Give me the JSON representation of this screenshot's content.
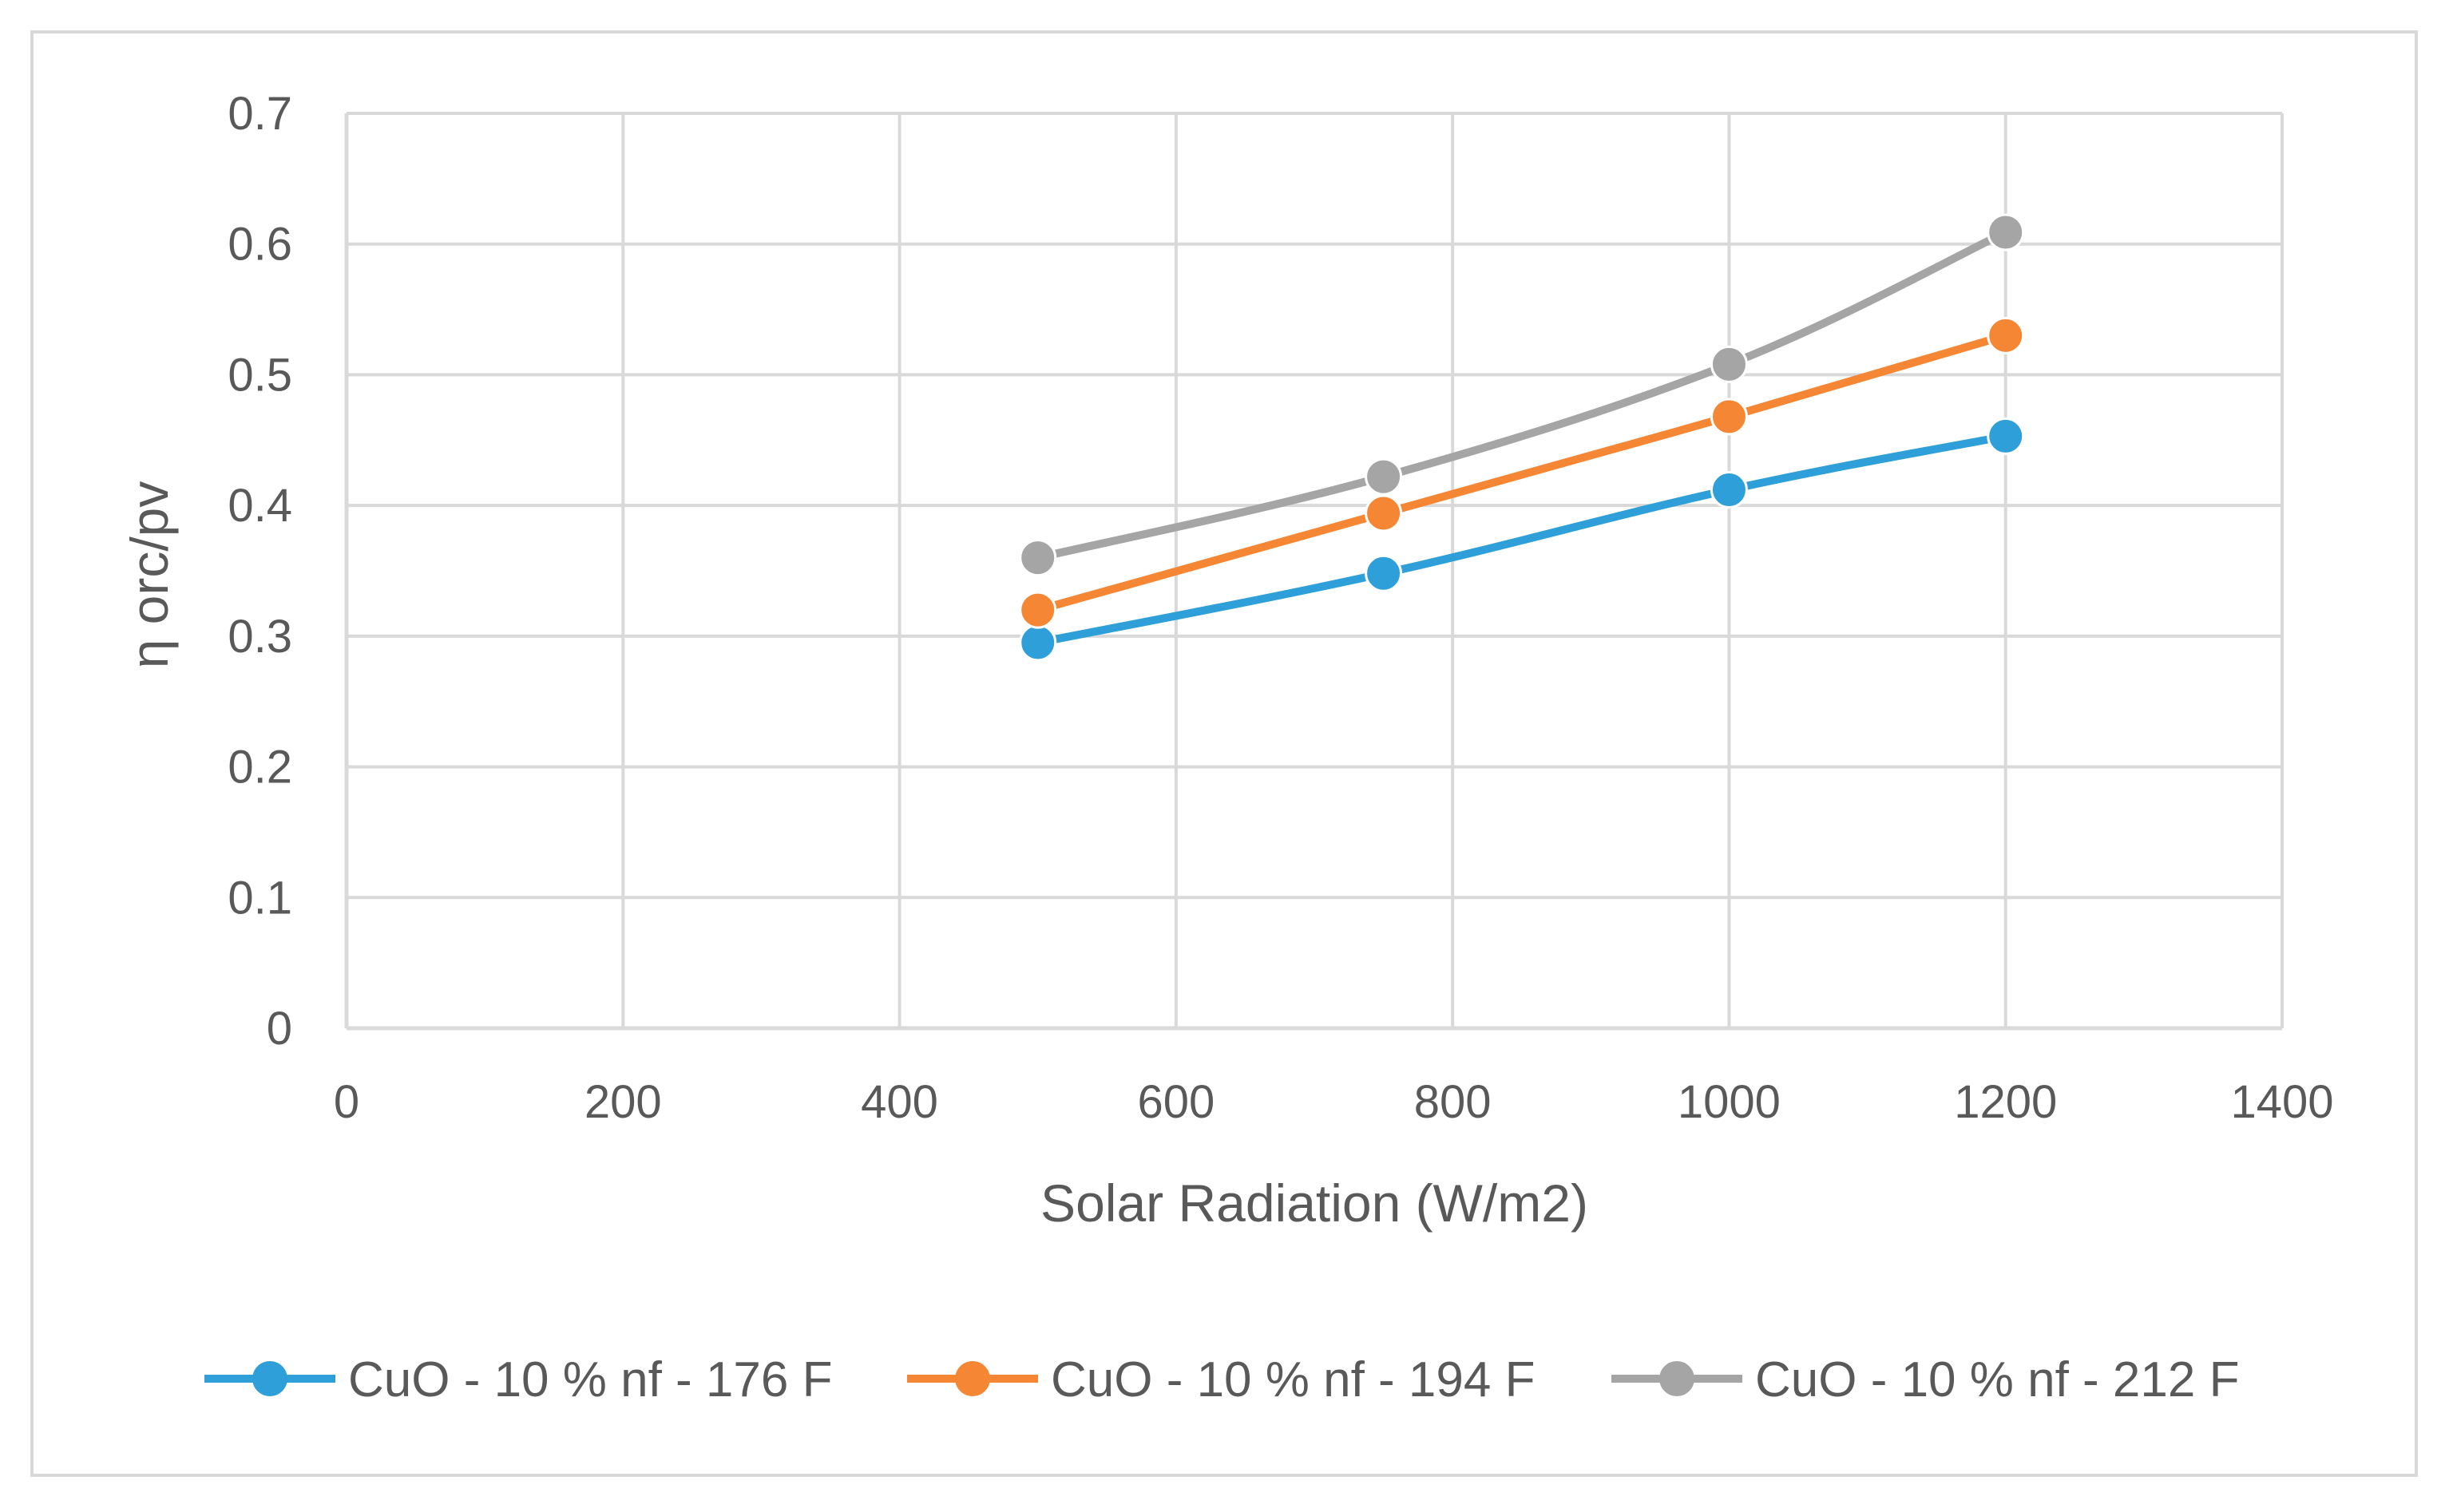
{
  "chart_data": {
    "type": "line",
    "title": "",
    "xlabel": "Solar Radiation (W/m2)",
    "ylabel": "η orc/pv",
    "xlim": [
      0,
      1400
    ],
    "ylim": [
      0,
      0.7
    ],
    "xticks": [
      0,
      200,
      400,
      600,
      800,
      1000,
      1200,
      1400
    ],
    "yticks": [
      0,
      0.1,
      0.2,
      0.3,
      0.4,
      0.5,
      0.6,
      0.7
    ],
    "grid": true,
    "legend_position": "bottom",
    "x": [
      500,
      750,
      1000,
      1200
    ],
    "series": [
      {
        "name": "CuO - 10 % nf - 176 F",
        "color": "#2e9fd8",
        "values": [
          0.295,
          0.348,
          0.412,
          0.453
        ]
      },
      {
        "name": "CuO - 10 % nf - 194 F",
        "color": "#f58634",
        "values": [
          0.32,
          0.394,
          0.468,
          0.53
        ]
      },
      {
        "name": "CuO - 10 % nf - 212 F",
        "color": "#a5a5a5",
        "values": [
          0.36,
          0.422,
          0.508,
          0.609
        ]
      }
    ]
  }
}
